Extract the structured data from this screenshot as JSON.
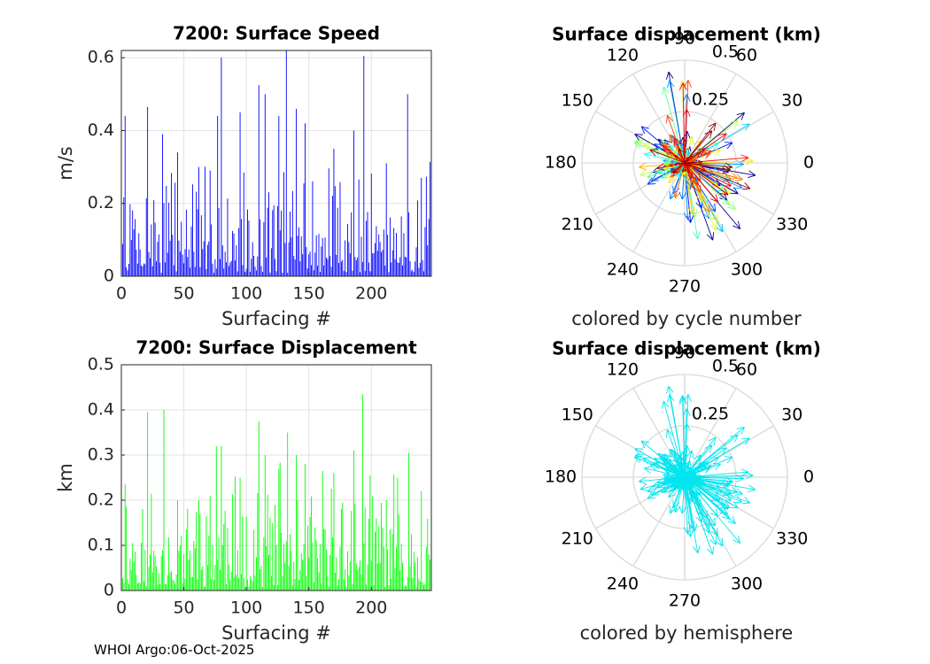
{
  "footer": "WHOI Argo:06-Oct-2025",
  "chart_data": [
    {
      "type": "bar",
      "title": "7200: Surface Speed",
      "xlabel": "Surfacing #",
      "ylabel": "m/s",
      "xlim": [
        0,
        248
      ],
      "ylim": [
        0,
        0.62
      ],
      "xticks": [
        0,
        50,
        100,
        150,
        200
      ],
      "yticks": [
        0,
        0.2,
        0.4,
        0.6
      ],
      "color": "#0000ff",
      "grid": true,
      "n": 248,
      "peaks": [
        [
          3,
          0.44
        ],
        [
          21,
          0.465
        ],
        [
          33,
          0.39
        ],
        [
          45,
          0.34
        ],
        [
          62,
          0.3
        ],
        [
          77,
          0.44
        ],
        [
          80,
          0.6
        ],
        [
          95,
          0.45
        ],
        [
          110,
          0.525
        ],
        [
          115,
          0.5
        ],
        [
          126,
          0.44
        ],
        [
          132,
          0.62
        ],
        [
          140,
          0.46
        ],
        [
          147,
          0.42
        ],
        [
          170,
          0.35
        ],
        [
          186,
          0.4
        ],
        [
          194,
          0.605
        ],
        [
          212,
          0.31
        ],
        [
          229,
          0.5
        ],
        [
          240,
          0.27
        ]
      ]
    },
    {
      "type": "bar",
      "title": "7200: Surface Displacement",
      "xlabel": "Surfacing #",
      "ylabel": "km",
      "xlim": [
        0,
        248
      ],
      "ylim": [
        0,
        0.5
      ],
      "xticks": [
        0,
        50,
        100,
        150,
        200
      ],
      "yticks": [
        0,
        0.1,
        0.2,
        0.3,
        0.4,
        0.5
      ],
      "color": "#00ff00",
      "grid": true,
      "n": 248,
      "peaks": [
        [
          3,
          0.235
        ],
        [
          21,
          0.395
        ],
        [
          34,
          0.4
        ],
        [
          45,
          0.2
        ],
        [
          62,
          0.2
        ],
        [
          76,
          0.32
        ],
        [
          80,
          0.32
        ],
        [
          95,
          0.25
        ],
        [
          110,
          0.375
        ],
        [
          115,
          0.3
        ],
        [
          126,
          0.27
        ],
        [
          133,
          0.35
        ],
        [
          140,
          0.3
        ],
        [
          147,
          0.28
        ],
        [
          170,
          0.26
        ],
        [
          186,
          0.31
        ],
        [
          193,
          0.435
        ],
        [
          212,
          0.2
        ],
        [
          230,
          0.305
        ],
        [
          240,
          0.22
        ]
      ]
    },
    {
      "type": "polar-compass",
      "title": "Surface displacement (km)",
      "caption": "colored by cycle number",
      "rlim": [
        0,
        0.5
      ],
      "rticks": [
        "0.25",
        "0.5"
      ],
      "angle_labels": [
        "0",
        "30",
        "60",
        "90",
        "120",
        "150",
        "180",
        "210",
        "240",
        "270",
        "300",
        "330"
      ],
      "color_mode": "cycle",
      "dominant_directions": [
        [
          40,
          0.38
        ],
        [
          100,
          0.45
        ],
        [
          150,
          0.28
        ],
        [
          195,
          0.12
        ],
        [
          290,
          0.4
        ],
        [
          310,
          0.42
        ],
        [
          330,
          0.3
        ],
        [
          350,
          0.35
        ]
      ]
    },
    {
      "type": "polar-compass",
      "title": "Surface displacement (km)",
      "caption": "colored by hemisphere",
      "rlim": [
        0,
        0.5
      ],
      "rticks": [
        "0.25",
        "0.5"
      ],
      "angle_labels": [
        "0",
        "30",
        "60",
        "90",
        "120",
        "150",
        "180",
        "210",
        "240",
        "270",
        "300",
        "330"
      ],
      "color_mode": "hemisphere",
      "color": "#00e5ee",
      "dominant_directions": [
        [
          40,
          0.38
        ],
        [
          100,
          0.45
        ],
        [
          150,
          0.28
        ],
        [
          195,
          0.12
        ],
        [
          290,
          0.4
        ],
        [
          310,
          0.42
        ],
        [
          330,
          0.3
        ],
        [
          350,
          0.35
        ]
      ]
    }
  ]
}
